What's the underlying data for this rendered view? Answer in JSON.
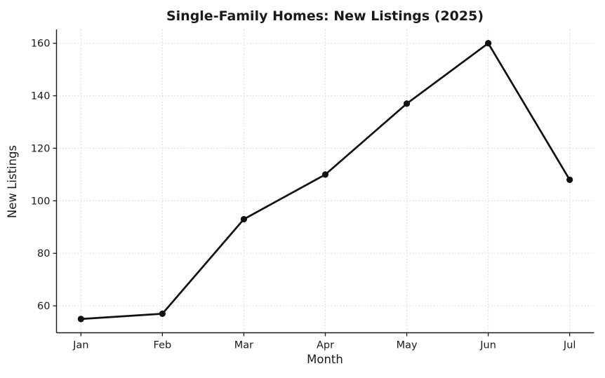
{
  "chart_data": {
    "type": "line",
    "title": "Single-Family Homes: New Listings (2025)",
    "xlabel": "Month",
    "ylabel": "New Listings",
    "categories": [
      "Jan",
      "Feb",
      "Mar",
      "Apr",
      "May",
      "Jun",
      "Jul"
    ],
    "series": [
      {
        "name": "New Listings",
        "values": [
          55,
          57,
          93,
          110,
          137,
          160,
          108
        ]
      }
    ],
    "yticks": [
      60,
      80,
      100,
      120,
      140,
      160
    ],
    "xlim": [
      -0.3,
      6.3
    ],
    "ylim": [
      49.75,
      165.25
    ],
    "grid": true,
    "grid_style": "dotted",
    "legend": "none",
    "line_color": "#111111",
    "marker_color": "#111111",
    "marker_shape": "circle",
    "grid_color": "#d9d9d9",
    "spine_color": "#1a1a1a",
    "text_color": "#1a1a1a",
    "background_color": "#ffffff"
  }
}
